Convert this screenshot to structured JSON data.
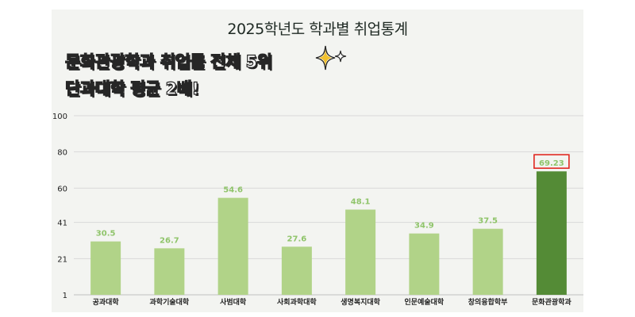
{
  "headline": {
    "line1": "문화관광학과 취업률 전체 5위",
    "line2": "단과대학 평균 2배!"
  },
  "colors": {
    "bar": "#b1d388",
    "bar_highlight": "#548b36",
    "value_label": "#8fc46a",
    "highlight_box": "#e0261f",
    "grid": "#d9d9d9",
    "sparkle": "#f2c12e"
  },
  "chart_data": {
    "type": "bar",
    "title": "2025학년도 학과별 취업통계",
    "xlabel": "",
    "ylabel": "",
    "ylim": [
      1,
      100
    ],
    "yticks": [
      "1",
      "21",
      "41",
      "60",
      "80",
      "100"
    ],
    "grid": true,
    "categories": [
      "공과대학",
      "과학기술대학",
      "사범대학",
      "사회과학대학",
      "생명복지대학",
      "인문예술대학",
      "창의융합학부",
      "문화관광학과"
    ],
    "values": [
      30.5,
      26.7,
      54.6,
      27.6,
      48.1,
      34.9,
      37.5,
      69.23
    ],
    "value_labels": [
      "30.5",
      "26.7",
      "54.6",
      "27.6",
      "48.1",
      "34.9",
      "37.5",
      "69.23"
    ],
    "highlight_index": 7
  }
}
